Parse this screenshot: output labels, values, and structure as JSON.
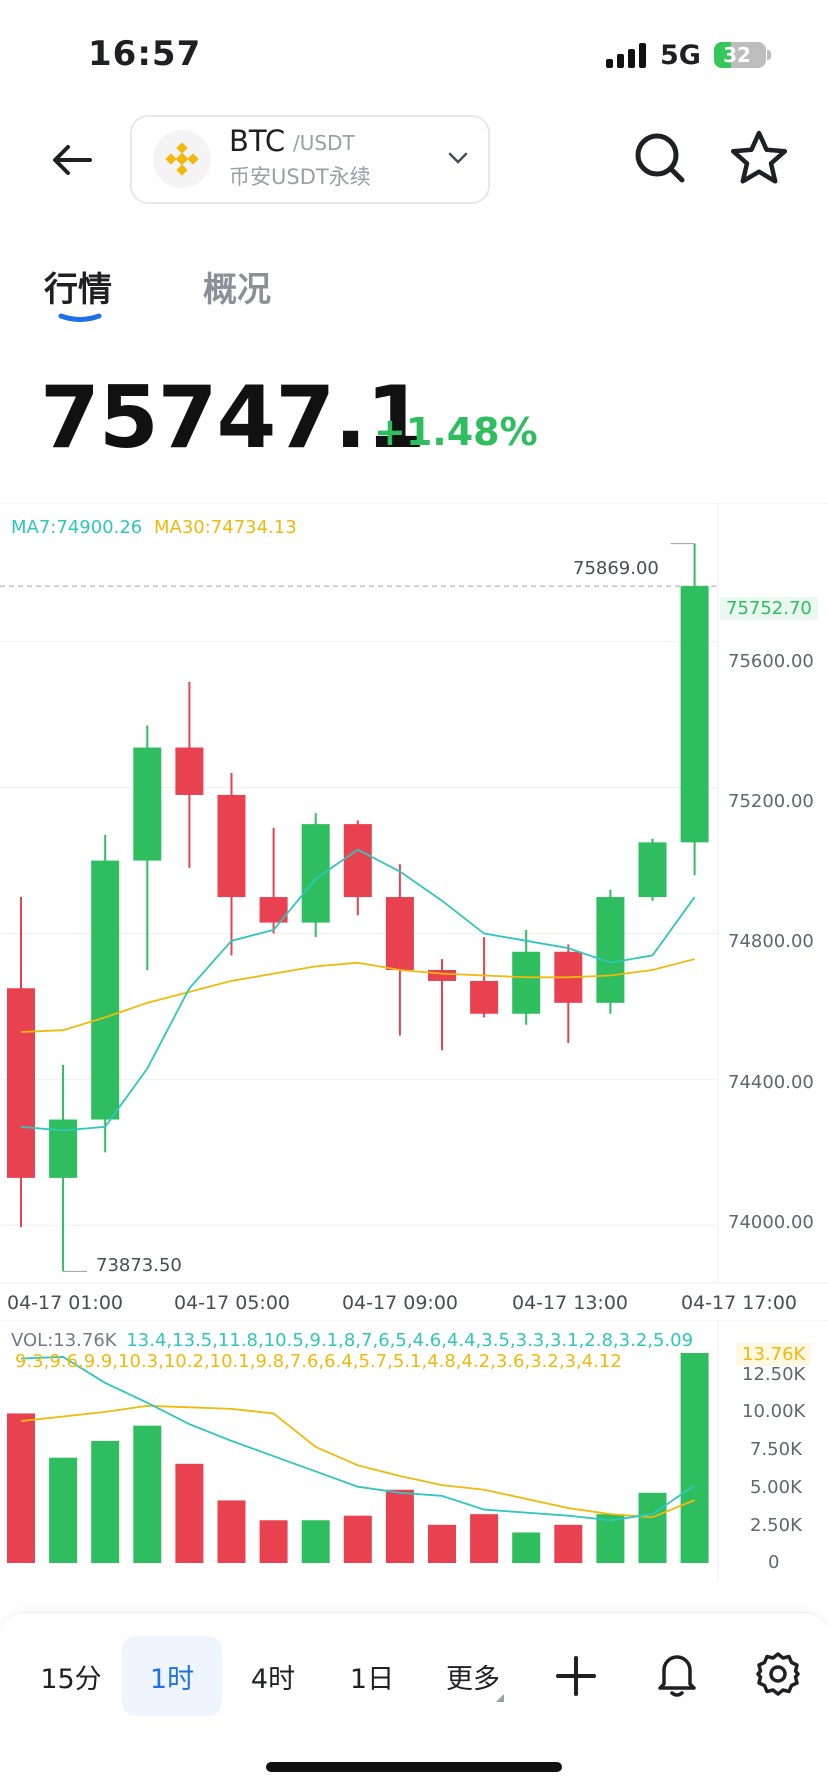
{
  "status_bar": {
    "time": "16:57",
    "network": "5G",
    "battery": "32",
    "battery_level": 0.32
  },
  "header": {
    "pair_base": "BTC",
    "pair_quote": "/USDT",
    "pair_subtitle": "币安USDT永续",
    "icons": {
      "back": "back-arrow-icon",
      "logo": "binance-logo-icon",
      "dropdown": "chevron-down-icon",
      "search": "search-icon",
      "favorite": "star-icon"
    }
  },
  "tabs": [
    {
      "label": "行情",
      "active": true
    },
    {
      "label": "概况",
      "active": false
    }
  ],
  "price": {
    "last": "75747.1",
    "change": "+1.48%"
  },
  "colors": {
    "up": "#2ebd5f",
    "down": "#e8414f",
    "ma7": "#2ec7bb",
    "ma30": "#f0b90b",
    "accent": "#1e6fe8"
  },
  "chart_data": {
    "type": "candlestick",
    "x_tick_labels": [
      "04-17 01:00",
      "04-17 05:00",
      "04-17 09:00",
      "04-17 13:00",
      "04-17 17:00"
    ],
    "y_tick_labels": [
      "75600.00",
      "75200.00",
      "74800.00",
      "74400.00",
      "74000.00"
    ],
    "y_ticks": [
      75600,
      75200,
      74800,
      74400,
      74000
    ],
    "ylim": [
      73850,
      75975
    ],
    "indicators": {
      "ma7": "MA7:74900.26",
      "ma30": "MA30:74734.13"
    },
    "current_price_tag": "75752.70",
    "current_price": 75752.7,
    "high_label": "75869.00",
    "low_label": "73873.50",
    "high_index": 16,
    "low_index": 1,
    "candles": [
      {
        "o": 74650,
        "h": 74900,
        "l": 73995,
        "c": 74130
      },
      {
        "o": 74130,
        "h": 74440,
        "l": 73873.5,
        "c": 74290
      },
      {
        "o": 74290,
        "h": 75070,
        "l": 74200,
        "c": 75000
      },
      {
        "o": 75000,
        "h": 75370,
        "l": 74700,
        "c": 75310
      },
      {
        "o": 75310,
        "h": 75490,
        "l": 74980,
        "c": 75180
      },
      {
        "o": 75180,
        "h": 75240,
        "l": 74740,
        "c": 74900
      },
      {
        "o": 74900,
        "h": 75090,
        "l": 74800,
        "c": 74830
      },
      {
        "o": 74830,
        "h": 75130,
        "l": 74790,
        "c": 75100
      },
      {
        "o": 75100,
        "h": 75110,
        "l": 74850,
        "c": 74900
      },
      {
        "o": 74900,
        "h": 74990,
        "l": 74520,
        "c": 74700
      },
      {
        "o": 74700,
        "h": 74730,
        "l": 74480,
        "c": 74670
      },
      {
        "o": 74670,
        "h": 74790,
        "l": 74570,
        "c": 74580
      },
      {
        "o": 74580,
        "h": 74810,
        "l": 74550,
        "c": 74750
      },
      {
        "o": 74750,
        "h": 74770,
        "l": 74500,
        "c": 74610
      },
      {
        "o": 74610,
        "h": 74920,
        "l": 74580,
        "c": 74900
      },
      {
        "o": 74900,
        "h": 75060,
        "l": 74890,
        "c": 75050
      },
      {
        "o": 75050,
        "h": 75869,
        "l": 74960,
        "c": 75752.7
      }
    ],
    "ma7": [
      74270,
      74260,
      74270,
      74430,
      74650,
      74780,
      74810,
      74950,
      75030,
      74970,
      74890,
      74800,
      74780,
      74760,
      74720,
      74740,
      74900
    ],
    "ma30": [
      74530,
      74535,
      74570,
      74610,
      74640,
      74670,
      74690,
      74710,
      74720,
      74700,
      74690,
      74685,
      74680,
      74680,
      74685,
      74700,
      74730
    ],
    "volume": {
      "label": "VOL:13.76K",
      "mavol5": [
        13.4,
        13.5,
        11.8,
        10.5,
        9.1,
        8.0,
        7.0,
        6.0,
        5.0,
        4.6,
        4.4,
        3.5,
        3.3,
        3.1,
        2.8,
        3.2,
        5.09
      ],
      "mavol10": [
        9.3,
        9.6,
        9.9,
        10.3,
        10.2,
        10.1,
        9.8,
        7.6,
        6.4,
        5.7,
        5.1,
        4.8,
        4.2,
        3.6,
        3.2,
        3.0,
        4.12
      ],
      "current_tag": "13.76K",
      "y_tick_labels": [
        "12.50K",
        "10.00K",
        "7.50K",
        "5.00K",
        "2.50K",
        "0"
      ],
      "y_ticks": [
        12.5,
        10,
        7.5,
        5,
        2.5,
        0
      ],
      "ylim": [
        0,
        13.76
      ],
      "values": [
        9.8,
        6.9,
        8.0,
        9.0,
        6.5,
        4.1,
        2.8,
        2.8,
        3.1,
        4.8,
        2.5,
        3.2,
        2.0,
        2.5,
        3.2,
        4.6,
        13.76
      ]
    }
  },
  "intervals": [
    {
      "label": "15分"
    },
    {
      "label": "1时",
      "active": true
    },
    {
      "label": "4时"
    },
    {
      "label": "1日"
    },
    {
      "label": "更多"
    }
  ],
  "toolbar_icons": [
    "plus-icon",
    "bell-icon",
    "gear-icon"
  ]
}
